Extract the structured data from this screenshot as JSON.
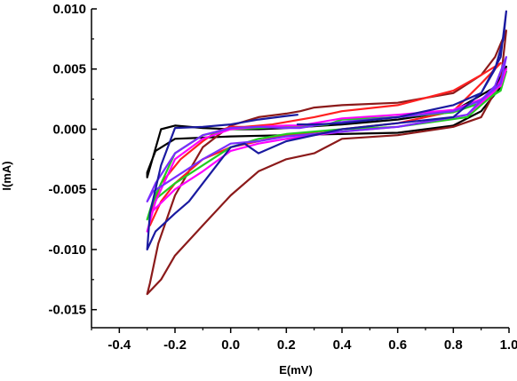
{
  "chart_data": {
    "type": "line",
    "title": "",
    "xlabel": "E(mV)",
    "ylabel": "I(mA)",
    "xlim": [
      -0.5,
      1.0
    ],
    "ylim": [
      -0.0165,
      0.01
    ],
    "x_ticks": [
      "-0.4",
      "-0.2",
      "0.0",
      "0.2",
      "0.4",
      "0.6",
      "0.8",
      "1.0"
    ],
    "x_tick_values": [
      -0.4,
      -0.2,
      0.0,
      0.2,
      0.4,
      0.6,
      0.8,
      1.0
    ],
    "y_ticks": [
      "0.010",
      "0.005",
      "0.000",
      "-0.005",
      "-0.010",
      "-0.015"
    ],
    "y_tick_values": [
      0.01,
      0.005,
      0.0,
      -0.005,
      -0.01,
      -0.015
    ],
    "grid": false,
    "legend": "none",
    "series": [
      {
        "color": "#000000",
        "x": [
          0.1,
          0.0,
          -0.1,
          -0.2,
          -0.25,
          -0.3,
          -0.3,
          -0.27,
          -0.2,
          -0.1,
          0.0,
          0.2,
          0.4,
          0.6,
          0.8,
          0.9,
          0.97,
          0.99,
          0.95,
          0.8,
          0.6,
          0.4,
          0.2,
          0.1
        ],
        "y": [
          0.0,
          0.0,
          0.0001,
          0.0003,
          0.0,
          -0.004,
          -0.0036,
          -0.0018,
          -0.0008,
          -0.0007,
          -0.0006,
          -0.0005,
          -0.0004,
          -0.0003,
          0.0003,
          0.0015,
          0.0035,
          0.0052,
          0.0035,
          0.0015,
          0.0008,
          0.0004,
          0.0001,
          0.0
        ]
      },
      {
        "color": "#8b1a1a",
        "x": [
          0.25,
          0.3,
          0.4,
          0.6,
          0.8,
          0.9,
          0.95,
          0.99,
          0.97,
          0.9,
          0.8,
          0.6,
          0.4,
          0.3,
          0.2,
          0.1,
          0.0,
          -0.1,
          -0.2,
          -0.25,
          -0.3,
          -0.29,
          -0.26,
          -0.2,
          -0.1,
          0.0,
          0.1,
          0.2,
          0.25
        ],
        "y": [
          0.0015,
          0.0018,
          0.002,
          0.0022,
          0.003,
          0.0045,
          0.006,
          0.0082,
          0.004,
          0.001,
          0.0002,
          -0.0005,
          -0.0008,
          -0.002,
          -0.0025,
          -0.0035,
          -0.0055,
          -0.008,
          -0.0105,
          -0.0125,
          -0.0137,
          -0.0128,
          -0.0095,
          -0.0055,
          -0.0015,
          0.0003,
          0.001,
          0.0013,
          0.0015
        ]
      },
      {
        "color": "#ff2020",
        "x": [
          0.05,
          0.15,
          0.3,
          0.4,
          0.6,
          0.8,
          0.9,
          0.97,
          0.9,
          0.8,
          0.6,
          0.4,
          0.2,
          0.1,
          0.0,
          -0.1,
          -0.2,
          -0.25,
          -0.29,
          -0.29,
          -0.25,
          -0.18,
          -0.1,
          -0.05,
          0.0,
          0.05
        ],
        "y": [
          0.0002,
          0.0004,
          0.001,
          0.0015,
          0.002,
          0.0032,
          0.0045,
          0.0055,
          0.0038,
          0.0015,
          0.0005,
          0.0,
          -0.0005,
          -0.001,
          -0.0015,
          -0.0025,
          -0.0045,
          -0.006,
          -0.008,
          -0.007,
          -0.0045,
          -0.0025,
          -0.001,
          -0.0002,
          0.0002,
          0.0002
        ]
      },
      {
        "color": "#22cc22",
        "x": [
          0.25,
          0.35,
          0.4,
          0.6,
          0.8,
          0.9,
          0.97,
          0.99,
          0.95,
          0.85,
          0.6,
          0.4,
          0.2,
          0.1,
          0.0,
          -0.1,
          -0.2,
          -0.28,
          -0.3,
          -0.27,
          -0.2,
          -0.1,
          0.0,
          0.1,
          0.2,
          0.25
        ],
        "y": [
          0.0002,
          0.0004,
          0.0008,
          0.001,
          0.0014,
          0.0022,
          0.0032,
          0.0048,
          0.003,
          0.001,
          0.0002,
          0.0,
          -0.0004,
          -0.0008,
          -0.0015,
          -0.003,
          -0.0045,
          -0.006,
          -0.0075,
          -0.0055,
          -0.002,
          -0.0005,
          0.0,
          0.0001,
          0.0002,
          0.0002
        ]
      },
      {
        "color": "#ff00ff",
        "x": [
          0.25,
          0.3,
          0.4,
          0.6,
          0.8,
          0.9,
          0.97,
          0.99,
          0.95,
          0.85,
          0.6,
          0.4,
          0.3,
          0.2,
          0.1,
          0.0,
          -0.1,
          -0.2,
          -0.28,
          -0.3,
          -0.27,
          -0.2,
          -0.1,
          0.0,
          0.1,
          0.2,
          0.25
        ],
        "y": [
          0.0003,
          0.0005,
          0.0009,
          0.0012,
          0.0016,
          0.0025,
          0.0036,
          0.005,
          0.0032,
          0.0012,
          0.0002,
          -0.0002,
          -0.0005,
          -0.0008,
          -0.0012,
          -0.0018,
          -0.0035,
          -0.005,
          -0.0068,
          -0.0085,
          -0.006,
          -0.0025,
          -0.0008,
          0.0,
          0.0002,
          0.0003,
          0.0003
        ]
      },
      {
        "color": "#7b2cff",
        "x": [
          0.25,
          0.3,
          0.4,
          0.6,
          0.8,
          0.9,
          0.97,
          0.99,
          0.95,
          0.85,
          0.6,
          0.4,
          0.3,
          0.2,
          0.1,
          0.0,
          -0.1,
          -0.2,
          -0.28,
          -0.3,
          -0.27,
          -0.2,
          -0.1,
          0.0,
          0.1,
          0.2,
          0.25
        ],
        "y": [
          0.0001,
          0.0003,
          0.0006,
          0.001,
          0.0015,
          0.0024,
          0.0038,
          0.006,
          0.0036,
          0.0012,
          0.0002,
          -0.0002,
          -0.0004,
          -0.0006,
          -0.001,
          -0.0012,
          -0.0025,
          -0.004,
          -0.0052,
          -0.006,
          -0.0045,
          -0.002,
          -0.0005,
          0.0001,
          0.0002,
          0.0001,
          0.0001
        ]
      },
      {
        "color": "#1a1aa0",
        "x": [
          0.24,
          0.2,
          0.1,
          0.0,
          -0.1,
          -0.2,
          -0.25,
          -0.29,
          -0.3,
          -0.27,
          -0.2,
          -0.15,
          -0.1,
          -0.05,
          0.0,
          0.05,
          0.1,
          0.2,
          0.4,
          0.6,
          0.8,
          0.9,
          0.95,
          0.98,
          0.99,
          0.97,
          0.9,
          0.8,
          0.6,
          0.4,
          0.3,
          0.24
        ],
        "y": [
          0.0012,
          0.0011,
          0.0008,
          0.0004,
          0.0002,
          0.0001,
          -0.003,
          -0.007,
          -0.01,
          -0.0085,
          -0.007,
          -0.006,
          -0.0045,
          -0.003,
          -0.0015,
          -0.0012,
          -0.002,
          -0.001,
          0.0,
          0.0005,
          0.001,
          0.003,
          0.005,
          0.0075,
          0.0098,
          0.006,
          0.003,
          0.002,
          0.001,
          0.0005,
          0.0004,
          0.0004
        ]
      }
    ]
  }
}
